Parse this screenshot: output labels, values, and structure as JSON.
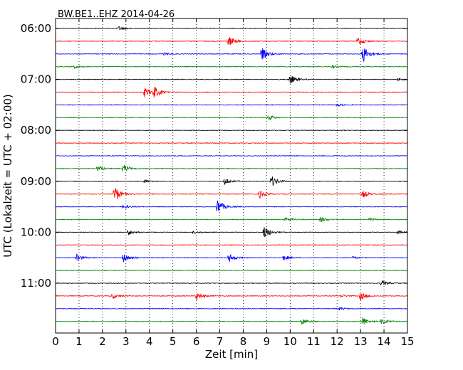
{
  "chart_data": {
    "type": "line",
    "title": "BW.BE1..EHZ 2014-04-26",
    "xlabel": "Zeit  [min]",
    "ylabel": "UTC (Lokalzeit = UTC + 02:00)",
    "xlim": [
      0,
      15
    ],
    "x_ticks": [
      "0",
      "1",
      "2",
      "3",
      "4",
      "5",
      "6",
      "7",
      "8",
      "9",
      "10",
      "11",
      "12",
      "13",
      "14",
      "15"
    ],
    "y_ticks": [
      "06:00",
      "07:00",
      "08:00",
      "09:00",
      "10:00",
      "11:00"
    ],
    "grid": "vertical-dotted",
    "colors": [
      "#000000",
      "#ff0000",
      "#0000ff",
      "#008000"
    ],
    "traces": [
      {
        "start": "06:00",
        "color": "#000000",
        "events": [
          [
            2.7,
            3
          ]
        ]
      },
      {
        "start": "06:15",
        "color": "#ff0000",
        "events": [
          [
            7.4,
            7
          ],
          [
            12.9,
            6
          ]
        ]
      },
      {
        "start": "06:30",
        "color": "#0000ff",
        "events": [
          [
            8.8,
            9
          ],
          [
            13.1,
            13
          ],
          [
            4.6,
            2
          ]
        ]
      },
      {
        "start": "06:45",
        "color": "#008000",
        "events": [
          [
            0.8,
            2
          ],
          [
            11.8,
            2
          ]
        ]
      },
      {
        "start": "07:00",
        "color": "#000000",
        "events": [
          [
            10.0,
            7
          ],
          [
            14.6,
            2
          ]
        ]
      },
      {
        "start": "07:15",
        "color": "#ff0000",
        "events": [
          [
            3.8,
            7
          ],
          [
            4.2,
            8
          ]
        ]
      },
      {
        "start": "07:30",
        "color": "#0000ff",
        "events": [
          [
            12.0,
            2
          ]
        ]
      },
      {
        "start": "07:45",
        "color": "#008000",
        "events": [
          [
            9.1,
            4
          ]
        ]
      },
      {
        "start": "08:00",
        "color": "#000000",
        "events": []
      },
      {
        "start": "08:15",
        "color": "#ff0000",
        "events": []
      },
      {
        "start": "08:30",
        "color": "#0000ff",
        "events": []
      },
      {
        "start": "08:45",
        "color": "#008000",
        "events": [
          [
            1.8,
            4
          ],
          [
            2.9,
            6
          ]
        ]
      },
      {
        "start": "09:00",
        "color": "#000000",
        "events": [
          [
            7.2,
            5
          ],
          [
            9.2,
            8
          ],
          [
            3.8,
            2
          ]
        ]
      },
      {
        "start": "09:15",
        "color": "#ff0000",
        "events": [
          [
            2.5,
            13
          ],
          [
            8.7,
            6
          ],
          [
            13.1,
            5
          ]
        ]
      },
      {
        "start": "09:30",
        "color": "#0000ff",
        "events": [
          [
            6.9,
            11
          ],
          [
            2.9,
            3
          ]
        ]
      },
      {
        "start": "09:45",
        "color": "#008000",
        "events": [
          [
            11.3,
            4
          ],
          [
            9.8,
            3
          ],
          [
            13.4,
            2
          ]
        ]
      },
      {
        "start": "10:00",
        "color": "#000000",
        "events": [
          [
            8.9,
            9
          ],
          [
            3.1,
            4
          ],
          [
            14.6,
            3
          ],
          [
            5.9,
            2
          ]
        ]
      },
      {
        "start": "10:15",
        "color": "#ff0000",
        "events": []
      },
      {
        "start": "10:30",
        "color": "#0000ff",
        "events": [
          [
            0.9,
            5
          ],
          [
            2.9,
            6
          ],
          [
            7.4,
            6
          ],
          [
            9.7,
            4
          ],
          [
            12.7,
            2
          ]
        ]
      },
      {
        "start": "10:45",
        "color": "#008000",
        "events": []
      },
      {
        "start": "11:00",
        "color": "#000000",
        "events": [
          [
            13.9,
            4
          ]
        ]
      },
      {
        "start": "11:15",
        "color": "#ff0000",
        "events": [
          [
            2.4,
            4
          ],
          [
            6.0,
            6
          ],
          [
            13.0,
            6
          ],
          [
            12.2,
            2
          ]
        ]
      },
      {
        "start": "11:30",
        "color": "#0000ff",
        "events": [
          [
            12.1,
            2
          ]
        ]
      },
      {
        "start": "11:45",
        "color": "#008000",
        "events": [
          [
            10.5,
            5
          ],
          [
            13.1,
            6
          ],
          [
            13.9,
            5
          ]
        ]
      }
    ]
  }
}
